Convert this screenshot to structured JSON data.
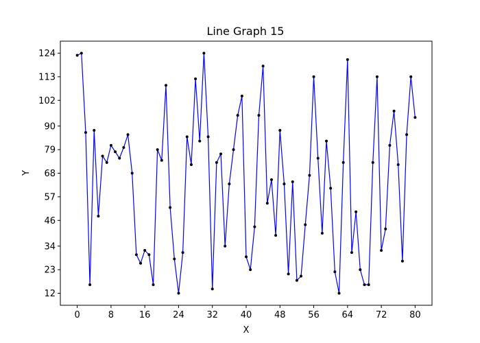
{
  "chart_data": {
    "type": "line",
    "title": "Line Graph 15",
    "xlabel": "X",
    "ylabel": "Y",
    "xlim": [
      -4,
      84
    ],
    "ylim": [
      6.4,
      129.6
    ],
    "xticks": [
      0,
      8,
      16,
      24,
      32,
      40,
      48,
      56,
      64,
      72,
      80
    ],
    "yticks": [
      12,
      23,
      34,
      46,
      57,
      68,
      79,
      90,
      102,
      113,
      124
    ],
    "grid": false,
    "legend": "none",
    "line_color": "#0000ff",
    "marker_color": "#000000",
    "series": [
      {
        "x": [
          0,
          1,
          2,
          3,
          4,
          5,
          6,
          7,
          8,
          9,
          10,
          11,
          12,
          13,
          14,
          15,
          16,
          17,
          18,
          19,
          20,
          21,
          22,
          23,
          24,
          25,
          26,
          27,
          28,
          29,
          30,
          31,
          32,
          33,
          34,
          35,
          36,
          37,
          38,
          39,
          40,
          41,
          42,
          43,
          44,
          45,
          46,
          47,
          48,
          49,
          50,
          51,
          52,
          53,
          54,
          55,
          56,
          57,
          58,
          59,
          60,
          61,
          62,
          63,
          64,
          65,
          66,
          67,
          68,
          69,
          70,
          71,
          72,
          73,
          74,
          75,
          76,
          77,
          78,
          79,
          80
        ],
        "values": [
          123,
          124,
          87,
          16,
          88,
          48,
          76,
          73,
          81,
          78,
          75,
          80,
          86,
          68,
          30,
          26,
          32,
          30,
          16,
          79,
          74,
          109,
          52,
          28,
          12,
          31,
          85,
          72,
          112,
          83,
          124,
          85,
          14,
          73,
          77,
          34,
          63,
          79,
          95,
          104,
          29,
          23,
          43,
          95,
          118,
          54,
          65,
          39,
          88,
          63,
          21,
          64,
          18,
          20,
          44,
          67,
          113,
          75,
          40,
          83,
          61,
          22,
          12,
          73,
          121,
          31,
          50,
          23,
          16,
          16,
          73,
          113,
          32,
          42,
          81,
          97,
          72,
          27,
          86,
          113,
          94
        ]
      }
    ]
  }
}
